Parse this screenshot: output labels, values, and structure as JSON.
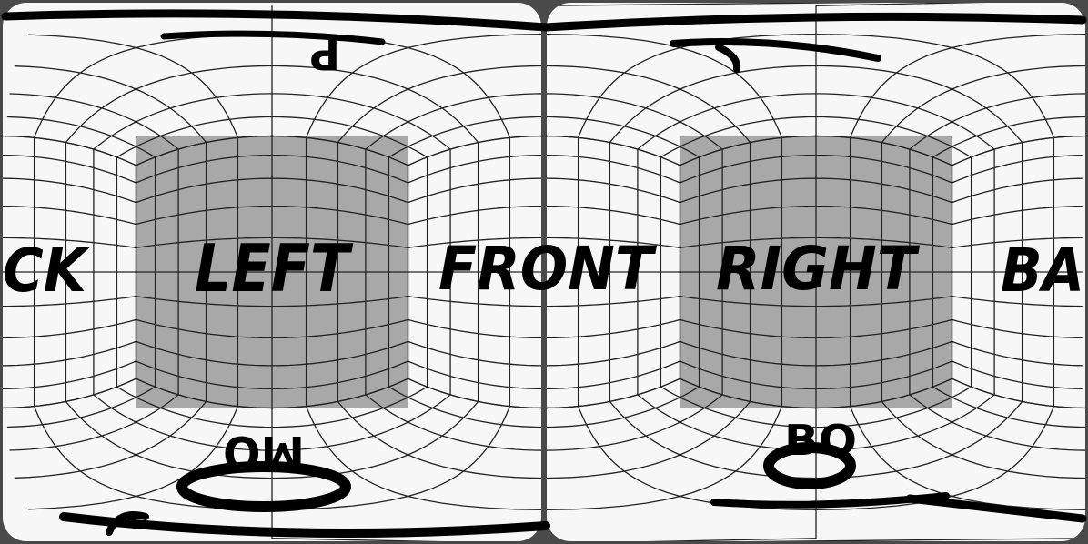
{
  "panorama": {
    "labels": {
      "back_left": "CK",
      "left": "LEFT",
      "front": "FRONT",
      "right": "RIGHT",
      "back_right": "BA",
      "top": "P",
      "bottom_left": "MO",
      "bottom_right": "BO"
    },
    "colors": {
      "background": "#4a4a4a",
      "face_light": "#f7f7f7",
      "face_shaded": "#a8a8a8",
      "grid_line": "#222222",
      "text": "#000000"
    }
  }
}
